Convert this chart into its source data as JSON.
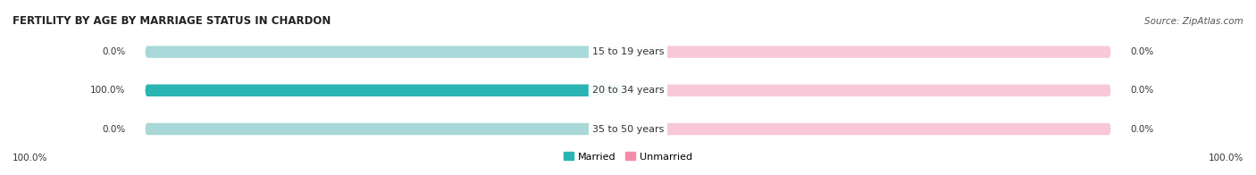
{
  "title": "FERTILITY BY AGE BY MARRIAGE STATUS IN CHARDON",
  "source": "Source: ZipAtlas.com",
  "categories": [
    "15 to 19 years",
    "20 to 34 years",
    "35 to 50 years"
  ],
  "married_values": [
    0.0,
    100.0,
    0.0
  ],
  "unmarried_values": [
    0.0,
    0.0,
    0.0
  ],
  "married_color": "#2ab5b2",
  "married_color_light": "#a8d8d8",
  "unmarried_color": "#f48bab",
  "unmarried_color_light": "#f8c8d8",
  "row_bg_colors": [
    "#f0f0f0",
    "#e4e4e4",
    "#f0f0f0"
  ],
  "title_fontsize": 8.5,
  "label_fontsize": 8,
  "tick_fontsize": 7.5,
  "source_fontsize": 7.5,
  "figsize": [
    14.06,
    1.96
  ],
  "dpi": 100,
  "left_label": "100.0%",
  "right_label": "100.0%"
}
